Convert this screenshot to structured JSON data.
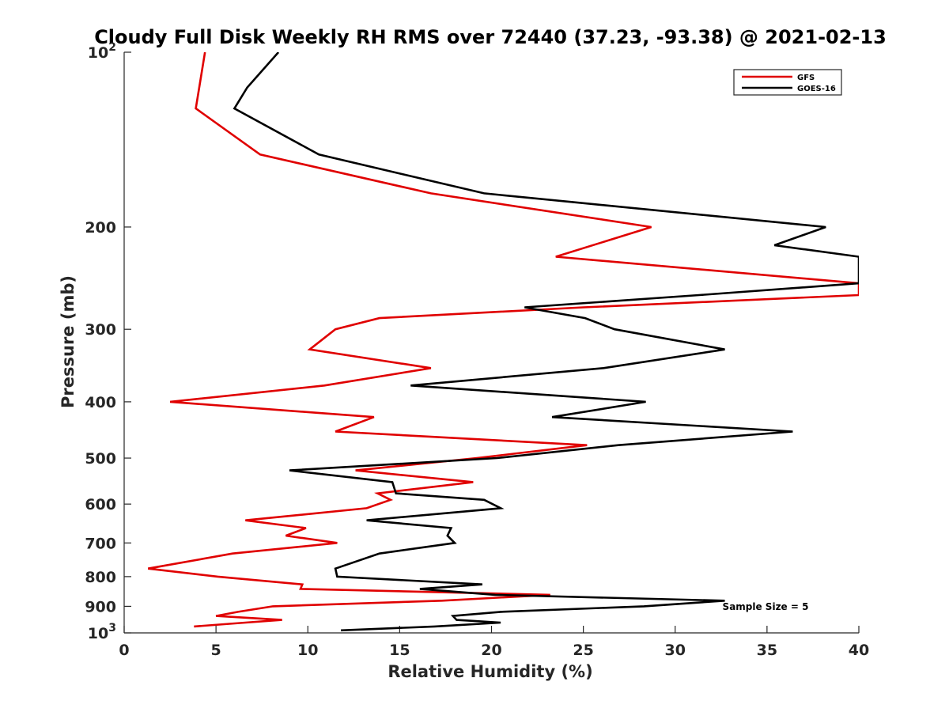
{
  "chart_data": {
    "type": "line",
    "title": "Cloudy Full Disk Weekly RH RMS over 72440 (37.23, -93.38) @ 2021-02-13",
    "xlabel": "Relative Humidity (%)",
    "ylabel": "Pressure (mb)",
    "xlim": [
      0,
      40
    ],
    "ylim": [
      100,
      1000
    ],
    "y_scale": "log",
    "y_reversed": true,
    "x_ticks": [
      "0",
      "5",
      "10",
      "15",
      "20",
      "25",
      "30",
      "35",
      "40"
    ],
    "y_ticks": [
      {
        "value": 100,
        "base": "10",
        "exp": "2"
      },
      {
        "value": 200,
        "label": "200"
      },
      {
        "value": 300,
        "label": "300"
      },
      {
        "value": 400,
        "label": "400"
      },
      {
        "value": 500,
        "label": "500"
      },
      {
        "value": 600,
        "label": "600"
      },
      {
        "value": 700,
        "label": "700"
      },
      {
        "value": 800,
        "label": "800"
      },
      {
        "value": 900,
        "label": "900"
      },
      {
        "value": 1000,
        "base": "10",
        "exp": "3"
      }
    ],
    "legend_position": "top-right",
    "annotation": "Sample Size = 5",
    "series": [
      {
        "name": "GFS",
        "color": "#e00000",
        "points": [
          [
            4.4,
            100
          ],
          [
            3.9,
            125
          ],
          [
            7.4,
            150
          ],
          [
            16.7,
            175
          ],
          [
            28.7,
            200
          ],
          [
            23.5,
            225
          ],
          [
            40,
            250
          ],
          [
            40,
            262
          ],
          [
            25,
            275
          ],
          [
            13.9,
            287
          ],
          [
            11.5,
            300
          ],
          [
            10.1,
            325
          ],
          [
            16.7,
            350
          ],
          [
            10.9,
            375
          ],
          [
            2.5,
            400
          ],
          [
            13.6,
            425
          ],
          [
            11.5,
            450
          ],
          [
            25.2,
            475
          ],
          [
            19.2,
            500
          ],
          [
            12.6,
            525
          ],
          [
            19.0,
            550
          ],
          [
            13.8,
            575
          ],
          [
            14.5,
            590
          ],
          [
            13.2,
            610
          ],
          [
            6.6,
            640
          ],
          [
            9.9,
            660
          ],
          [
            8.8,
            680
          ],
          [
            11.6,
            700
          ],
          [
            5.9,
            730
          ],
          [
            1.3,
            775
          ],
          [
            5.1,
            800
          ],
          [
            9.7,
            825
          ],
          [
            9.6,
            840
          ],
          [
            23.2,
            860
          ],
          [
            17.3,
            880
          ],
          [
            8.1,
            900
          ],
          [
            6.2,
            920
          ],
          [
            5.0,
            935
          ],
          [
            8.6,
            950
          ],
          [
            6.6,
            960
          ],
          [
            3.8,
            975
          ]
        ]
      },
      {
        "name": "GOES-16",
        "color": "#000000",
        "points": [
          [
            8.4,
            100
          ],
          [
            6.7,
            115
          ],
          [
            6.0,
            125
          ],
          [
            10.6,
            150
          ],
          [
            19.6,
            175
          ],
          [
            38.2,
            200
          ],
          [
            35.4,
            215
          ],
          [
            40,
            225
          ],
          [
            40,
            250
          ],
          [
            31.3,
            262
          ],
          [
            21.8,
            275
          ],
          [
            25.1,
            287
          ],
          [
            26.7,
            300
          ],
          [
            32.7,
            325
          ],
          [
            26.1,
            350
          ],
          [
            15.6,
            375
          ],
          [
            28.4,
            400
          ],
          [
            23.3,
            425
          ],
          [
            36.4,
            450
          ],
          [
            26.9,
            475
          ],
          [
            20.3,
            500
          ],
          [
            9.0,
            525
          ],
          [
            14.6,
            550
          ],
          [
            14.8,
            575
          ],
          [
            19.6,
            590
          ],
          [
            20.5,
            610
          ],
          [
            13.2,
            640
          ],
          [
            17.8,
            660
          ],
          [
            17.6,
            680
          ],
          [
            18.0,
            700
          ],
          [
            13.9,
            730
          ],
          [
            11.5,
            775
          ],
          [
            11.6,
            800
          ],
          [
            19.5,
            825
          ],
          [
            16.1,
            840
          ],
          [
            20.2,
            860
          ],
          [
            32.7,
            880
          ],
          [
            28.3,
            900
          ],
          [
            20.5,
            920
          ],
          [
            17.9,
            935
          ],
          [
            18.1,
            950
          ],
          [
            20.5,
            960
          ],
          [
            16.9,
            975
          ],
          [
            11.8,
            990
          ]
        ]
      }
    ]
  }
}
